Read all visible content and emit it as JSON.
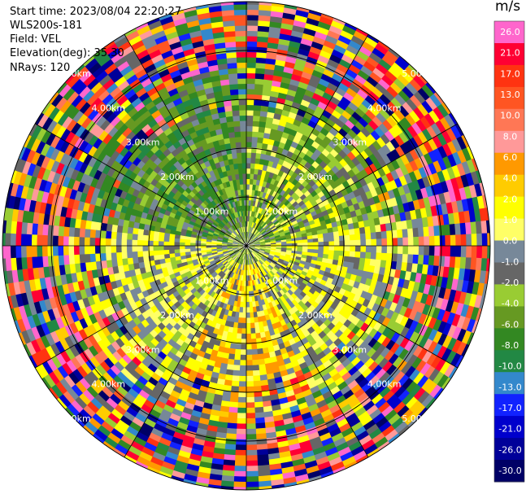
{
  "info": {
    "start_time": "Start time: 2023/08/04 22:20:27",
    "instrument": "WLS200s-181",
    "field": "Field: VEL",
    "elevation": "Elevation(deg): 35.30",
    "nrays": "NRays: 120"
  },
  "chart_data": {
    "type": "ppi",
    "field": "VEL",
    "units": "m/s",
    "n_rays": 120,
    "range_rings_km": [
      1.0,
      2.0,
      3.0,
      4.0,
      5.0
    ],
    "ring_labels": [
      "1.00km",
      "2.00km",
      "3.00km",
      "4.00km",
      "5.00km"
    ],
    "colorbar": {
      "label": "m/s",
      "ticks": [
        "26.0",
        "21.0",
        "17.0",
        "13.0",
        "10.0",
        "8.0",
        "6.0",
        "4.0",
        "2.0",
        "1.0",
        "0.0",
        "-1.0",
        "-2.0",
        "-4.0",
        "-6.0",
        "-8.0",
        "-10.0",
        "-13.0",
        "-17.0",
        "-21.0",
        "-26.0",
        "-30.0"
      ],
      "colors": [
        "#ff66cc",
        "#ff0033",
        "#ff3311",
        "#ff5522",
        "#ff7755",
        "#ff9999",
        "#ff9900",
        "#ffcc00",
        "#ffff00",
        "#ffff66",
        "#778899",
        "#666666",
        "#99cc33",
        "#669922",
        "#338822",
        "#228844",
        "#3388cc",
        "#1122ff",
        "#0000cc",
        "#000099",
        "#000066"
      ]
    }
  }
}
